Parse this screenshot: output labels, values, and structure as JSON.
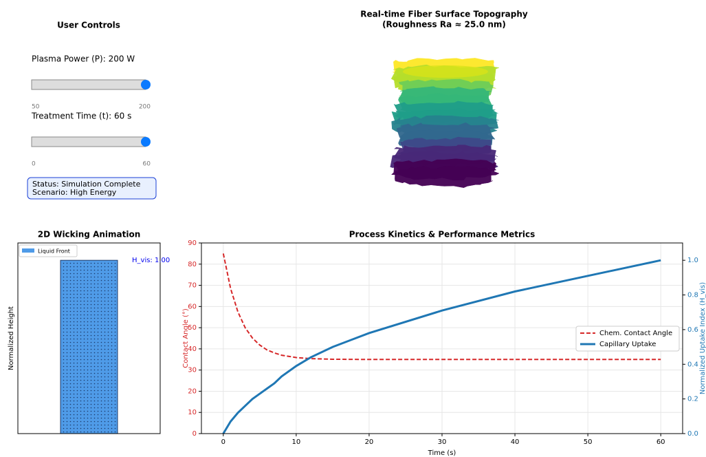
{
  "controls": {
    "title": "User Controls",
    "sliders": [
      {
        "label": "Plasma Power (P): 200 W",
        "min": 50,
        "max": 200,
        "value": 200
      },
      {
        "label": "Treatment Time (t): 60 s",
        "min": 0,
        "max": 60,
        "value": 60
      }
    ],
    "status": [
      "Status: Simulation Complete",
      "Scenario: High Energy"
    ]
  },
  "topography": {
    "title": [
      "Real-time Fiber Surface Topography",
      "(Roughness Ra ≈ 25.0 nm)"
    ]
  },
  "chart_data": [
    {
      "type": "bar",
      "title": "2D Wicking Animation",
      "ylabel": "Normalized Height",
      "series": [
        {
          "name": "Liquid Front",
          "color": "#4f9be8",
          "values": [
            1.0
          ]
        }
      ],
      "ylim": [
        0,
        1.1
      ],
      "annotation": "H_vis: 1.00"
    },
    {
      "type": "line",
      "title": "Process Kinetics & Performance Metrics",
      "xlabel": "Time (s)",
      "ylabel": "Contact Angle (°)",
      "y2label": "Normalized Uptake Index (H_vis)",
      "x": [
        0,
        1,
        2,
        3,
        4,
        5,
        6,
        7,
        8,
        10,
        12,
        15,
        20,
        30,
        40,
        50,
        60
      ],
      "series": [
        {
          "name": "Chem. Contact Angle",
          "color": "#d62728",
          "dashed": true,
          "values": [
            85,
            68.5,
            57.5,
            50,
            45.1,
            41.8,
            39.5,
            38.1,
            37.0,
            35.9,
            35.4,
            35.1,
            35,
            35,
            35,
            35,
            35
          ]
        },
        {
          "name": "Capillary Uptake",
          "color": "#1f77b4",
          "axis": "y2",
          "values": [
            0,
            0.07,
            0.12,
            0.16,
            0.2,
            0.23,
            0.26,
            0.29,
            0.33,
            0.39,
            0.44,
            0.5,
            0.58,
            0.71,
            0.82,
            0.91,
            1.0
          ]
        }
      ],
      "xlim": [
        -3,
        63
      ],
      "xticks": [
        0,
        10,
        20,
        30,
        40,
        50,
        60
      ],
      "ylim": [
        0,
        90
      ],
      "yticks": [
        0,
        10,
        20,
        30,
        40,
        50,
        60,
        70,
        80,
        90
      ],
      "y2lim": [
        0,
        1.1
      ],
      "y2ticks": [
        {
          "value": 0,
          "label": "0.0"
        },
        0.2,
        0.4,
        0.6,
        0.8,
        {
          "value": 1,
          "label": "1.0"
        }
      ],
      "grid": true,
      "legend": "right"
    }
  ]
}
